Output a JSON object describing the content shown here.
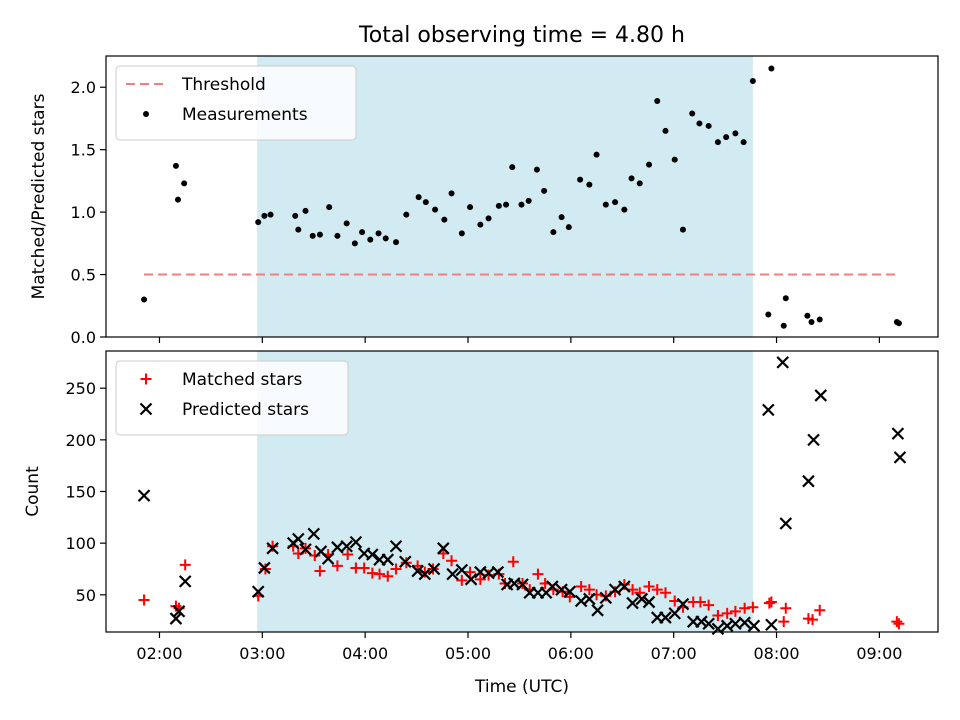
{
  "chart_data": {
    "title": "Total observing time = 4.80 h",
    "x_axis": {
      "label": "Time (UTC)",
      "unit": "hours (UTC)",
      "range": [
        1.48,
        9.57
      ],
      "ticks": [
        {
          "value": 2,
          "label": "02:00"
        },
        {
          "value": 3,
          "label": "03:00"
        },
        {
          "value": 4,
          "label": "04:00"
        },
        {
          "value": 5,
          "label": "05:00"
        },
        {
          "value": 6,
          "label": "06:00"
        },
        {
          "value": 7,
          "label": "07:00"
        },
        {
          "value": 8,
          "label": "08:00"
        },
        {
          "value": 9,
          "label": "09:00"
        }
      ]
    },
    "observing_window": {
      "start": 2.95,
      "end": 7.77,
      "color": "#add8e6"
    },
    "panels": [
      {
        "type": "scatter",
        "ylabel": "Matched/Predicted stars",
        "ylim": [
          0,
          2.25
        ],
        "yticks": [
          {
            "value": 0,
            "label": "0.0"
          },
          {
            "value": 0.5,
            "label": "0.5"
          },
          {
            "value": 1.0,
            "label": "1.0"
          },
          {
            "value": 1.5,
            "label": "1.5"
          },
          {
            "value": 2.0,
            "label": "2.0"
          }
        ],
        "legend_position": "upper-left",
        "threshold": {
          "name": "Threshold",
          "value": 0.5,
          "x_range": [
            1.85,
            9.2
          ],
          "color": "#f08080"
        },
        "series": [
          {
            "name": "Measurements",
            "marker": "dot",
            "color": "#000000",
            "points": [
              [
                1.85,
                0.3
              ],
              [
                2.16,
                1.37
              ],
              [
                2.18,
                1.1
              ],
              [
                2.24,
                1.23
              ],
              [
                2.96,
                0.92
              ],
              [
                3.02,
                0.97
              ],
              [
                3.08,
                0.98
              ],
              [
                3.32,
                0.97
              ],
              [
                3.35,
                0.86
              ],
              [
                3.42,
                1.01
              ],
              [
                3.49,
                0.81
              ],
              [
                3.56,
                0.82
              ],
              [
                3.65,
                1.04
              ],
              [
                3.73,
                0.81
              ],
              [
                3.82,
                0.91
              ],
              [
                3.9,
                0.75
              ],
              [
                3.97,
                0.84
              ],
              [
                4.05,
                0.78
              ],
              [
                4.13,
                0.83
              ],
              [
                4.2,
                0.79
              ],
              [
                4.3,
                0.76
              ],
              [
                4.4,
                0.98
              ],
              [
                4.52,
                1.12
              ],
              [
                4.59,
                1.08
              ],
              [
                4.68,
                1.02
              ],
              [
                4.77,
                0.94
              ],
              [
                4.84,
                1.15
              ],
              [
                4.94,
                0.83
              ],
              [
                5.02,
                1.04
              ],
              [
                5.12,
                0.9
              ],
              [
                5.2,
                0.95
              ],
              [
                5.3,
                1.05
              ],
              [
                5.37,
                1.06
              ],
              [
                5.43,
                1.36
              ],
              [
                5.52,
                1.06
              ],
              [
                5.59,
                1.09
              ],
              [
                5.67,
                1.34
              ],
              [
                5.74,
                1.17
              ],
              [
                5.83,
                0.84
              ],
              [
                5.91,
                0.96
              ],
              [
                5.98,
                0.88
              ],
              [
                6.09,
                1.26
              ],
              [
                6.18,
                1.22
              ],
              [
                6.25,
                1.46
              ],
              [
                6.34,
                1.06
              ],
              [
                6.43,
                1.08
              ],
              [
                6.52,
                1.02
              ],
              [
                6.59,
                1.27
              ],
              [
                6.67,
                1.23
              ],
              [
                6.76,
                1.38
              ],
              [
                6.84,
                1.89
              ],
              [
                6.92,
                1.65
              ],
              [
                7.01,
                1.42
              ],
              [
                7.09,
                0.86
              ],
              [
                7.18,
                1.79
              ],
              [
                7.25,
                1.71
              ],
              [
                7.34,
                1.69
              ],
              [
                7.43,
                1.56
              ],
              [
                7.51,
                1.6
              ],
              [
                7.6,
                1.63
              ],
              [
                7.68,
                1.56
              ],
              [
                7.77,
                2.05
              ],
              [
                7.92,
                0.18
              ],
              [
                7.95,
                2.15
              ],
              [
                8.07,
                0.09
              ],
              [
                8.09,
                0.31
              ],
              [
                8.3,
                0.17
              ],
              [
                8.34,
                0.12
              ],
              [
                8.42,
                0.14
              ],
              [
                9.17,
                0.12
              ],
              [
                9.19,
                0.11
              ]
            ]
          }
        ]
      },
      {
        "type": "scatter",
        "ylabel": "Count",
        "ylim": [
          14,
          286
        ],
        "yticks": [
          {
            "value": 50,
            "label": "50"
          },
          {
            "value": 100,
            "label": "100"
          },
          {
            "value": 150,
            "label": "150"
          },
          {
            "value": 200,
            "label": "200"
          },
          {
            "value": 250,
            "label": "250"
          }
        ],
        "legend_position": "upper-left",
        "series": [
          {
            "name": "Matched stars",
            "marker": "plus",
            "color": "#ff0000",
            "points": [
              [
                1.85,
                45
              ],
              [
                2.16,
                39
              ],
              [
                2.19,
                37
              ],
              [
                2.25,
                79
              ],
              [
                2.96,
                49
              ],
              [
                3.03,
                75
              ],
              [
                3.1,
                97
              ],
              [
                3.3,
                97
              ],
              [
                3.35,
                90
              ],
              [
                3.42,
                95
              ],
              [
                3.51,
                88
              ],
              [
                3.56,
                73
              ],
              [
                3.64,
                89
              ],
              [
                3.73,
                78
              ],
              [
                3.83,
                89
              ],
              [
                3.91,
                76
              ],
              [
                3.99,
                76
              ],
              [
                4.07,
                71
              ],
              [
                4.14,
                70
              ],
              [
                4.22,
                68
              ],
              [
                4.3,
                75
              ],
              [
                4.4,
                81
              ],
              [
                4.51,
                78
              ],
              [
                4.58,
                72
              ],
              [
                4.66,
                75
              ],
              [
                4.76,
                90
              ],
              [
                4.84,
                83
              ],
              [
                4.94,
                64
              ],
              [
                5.02,
                72
              ],
              [
                5.12,
                65
              ],
              [
                5.2,
                69
              ],
              [
                5.3,
                70
              ],
              [
                5.36,
                61
              ],
              [
                5.44,
                82
              ],
              [
                5.53,
                61
              ],
              [
                5.6,
                55
              ],
              [
                5.68,
                70
              ],
              [
                5.75,
                61
              ],
              [
                5.83,
                55
              ],
              [
                5.92,
                53
              ],
              [
                5.99,
                48
              ],
              [
                6.1,
                58
              ],
              [
                6.18,
                55
              ],
              [
                6.25,
                50
              ],
              [
                6.34,
                49
              ],
              [
                6.43,
                53
              ],
              [
                6.52,
                60
              ],
              [
                6.6,
                55
              ],
              [
                6.67,
                52
              ],
              [
                6.76,
                58
              ],
              [
                6.84,
                55
              ],
              [
                6.92,
                52
              ],
              [
                7.01,
                44
              ],
              [
                7.09,
                38
              ],
              [
                7.19,
                43
              ],
              [
                7.26,
                43
              ],
              [
                7.34,
                40
              ],
              [
                7.43,
                30
              ],
              [
                7.52,
                32
              ],
              [
                7.6,
                34
              ],
              [
                7.69,
                37
              ],
              [
                7.77,
                38
              ],
              [
                7.93,
                42
              ],
              [
                7.95,
                43
              ],
              [
                8.07,
                24
              ],
              [
                8.09,
                37
              ],
              [
                8.31,
                27
              ],
              [
                8.35,
                26
              ],
              [
                8.42,
                35
              ],
              [
                9.17,
                24
              ],
              [
                9.19,
                22
              ]
            ]
          },
          {
            "name": "Predicted stars",
            "marker": "x",
            "color": "#000000",
            "points": [
              [
                1.85,
                146
              ],
              [
                2.16,
                27
              ],
              [
                2.19,
                34
              ],
              [
                2.25,
                63
              ],
              [
                2.96,
                53
              ],
              [
                3.02,
                76
              ],
              [
                3.1,
                95
              ],
              [
                3.3,
                100
              ],
              [
                3.35,
                104
              ],
              [
                3.42,
                94
              ],
              [
                3.5,
                109
              ],
              [
                3.57,
                92
              ],
              [
                3.64,
                85
              ],
              [
                3.73,
                96
              ],
              [
                3.82,
                97
              ],
              [
                3.91,
                101
              ],
              [
                3.99,
                90
              ],
              [
                4.07,
                89
              ],
              [
                4.14,
                84
              ],
              [
                4.22,
                84
              ],
              [
                4.3,
                97
              ],
              [
                4.39,
                82
              ],
              [
                4.51,
                73
              ],
              [
                4.58,
                70
              ],
              [
                4.67,
                75
              ],
              [
                4.76,
                95
              ],
              [
                4.85,
                70
              ],
              [
                4.94,
                74
              ],
              [
                5.03,
                65
              ],
              [
                5.12,
                72
              ],
              [
                5.2,
                71
              ],
              [
                5.29,
                72
              ],
              [
                5.38,
                60
              ],
              [
                5.45,
                61
              ],
              [
                5.53,
                60
              ],
              [
                5.6,
                52
              ],
              [
                5.68,
                52
              ],
              [
                5.76,
                52
              ],
              [
                5.82,
                58
              ],
              [
                5.91,
                55
              ],
              [
                5.99,
                53
              ],
              [
                6.1,
                44
              ],
              [
                6.18,
                46
              ],
              [
                6.26,
                35
              ],
              [
                6.34,
                47
              ],
              [
                6.43,
                55
              ],
              [
                6.52,
                58
              ],
              [
                6.6,
                42
              ],
              [
                6.69,
                46
              ],
              [
                6.76,
                43
              ],
              [
                6.84,
                28
              ],
              [
                6.92,
                28
              ],
              [
                7.01,
                32
              ],
              [
                7.09,
                41
              ],
              [
                7.19,
                24
              ],
              [
                7.27,
                24
              ],
              [
                7.34,
                22
              ],
              [
                7.43,
                17
              ],
              [
                7.52,
                20
              ],
              [
                7.6,
                22
              ],
              [
                7.69,
                23
              ],
              [
                7.78,
                20
              ],
              [
                7.92,
                229
              ],
              [
                7.95,
                21
              ],
              [
                8.06,
                275
              ],
              [
                8.09,
                119
              ],
              [
                8.31,
                160
              ],
              [
                8.36,
                200
              ],
              [
                8.43,
                243
              ],
              [
                9.18,
                206
              ],
              [
                9.2,
                183
              ]
            ]
          }
        ]
      }
    ]
  }
}
